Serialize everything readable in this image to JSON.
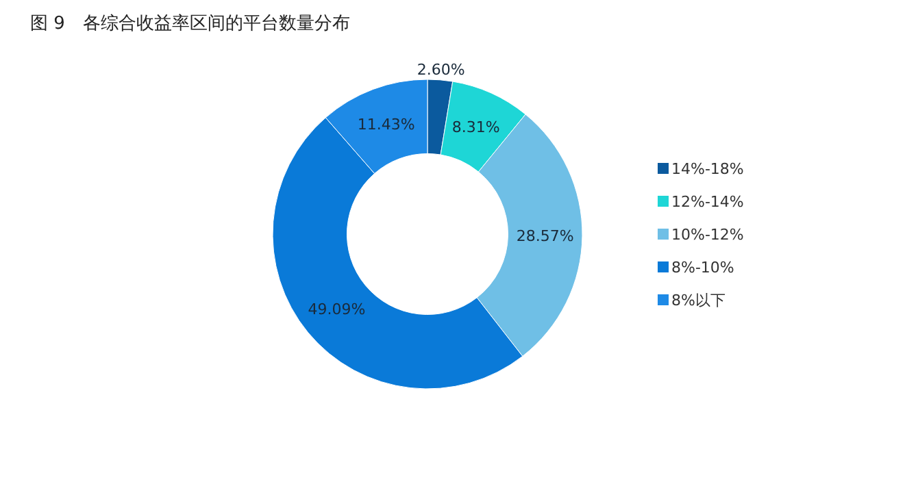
{
  "chart_data": {
    "type": "donut",
    "title": "图 9　各综合收益率区间的平台数量分布",
    "categories": [
      "14%-18%",
      "12%-14%",
      "10%-12%",
      "8%-10%",
      "8%以下"
    ],
    "values": [
      2.6,
      8.31,
      28.57,
      49.09,
      11.43
    ],
    "value_labels": [
      "2.60%",
      "8.31%",
      "28.57%",
      "49.09%",
      "11.43%"
    ],
    "colors": [
      "#0b5a9e",
      "#1ed6d6",
      "#6fbfe6",
      "#0a7ad8",
      "#1e8ae6"
    ],
    "legend": "right"
  }
}
